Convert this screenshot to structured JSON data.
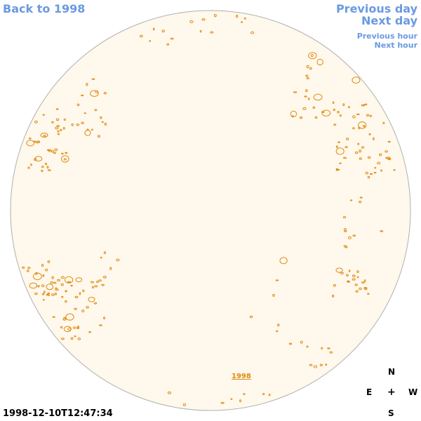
{
  "nav": {
    "back": "Back to 1998",
    "previous_day": "Previous day",
    "next_day": "Next day",
    "previous_hour": "Previous hour",
    "next_hour": "Next hour"
  },
  "disk_link": "1998",
  "timestamp": "1998-12-10T12:47:34",
  "compass": {
    "north": "N",
    "east": "E",
    "center": "+",
    "west": "W",
    "south": "S"
  },
  "colors": {
    "disk_fill": "#fff8ec",
    "disk_stroke": "#b0b0b0",
    "contour": "#e08a10",
    "link": "#6a9ae0"
  }
}
